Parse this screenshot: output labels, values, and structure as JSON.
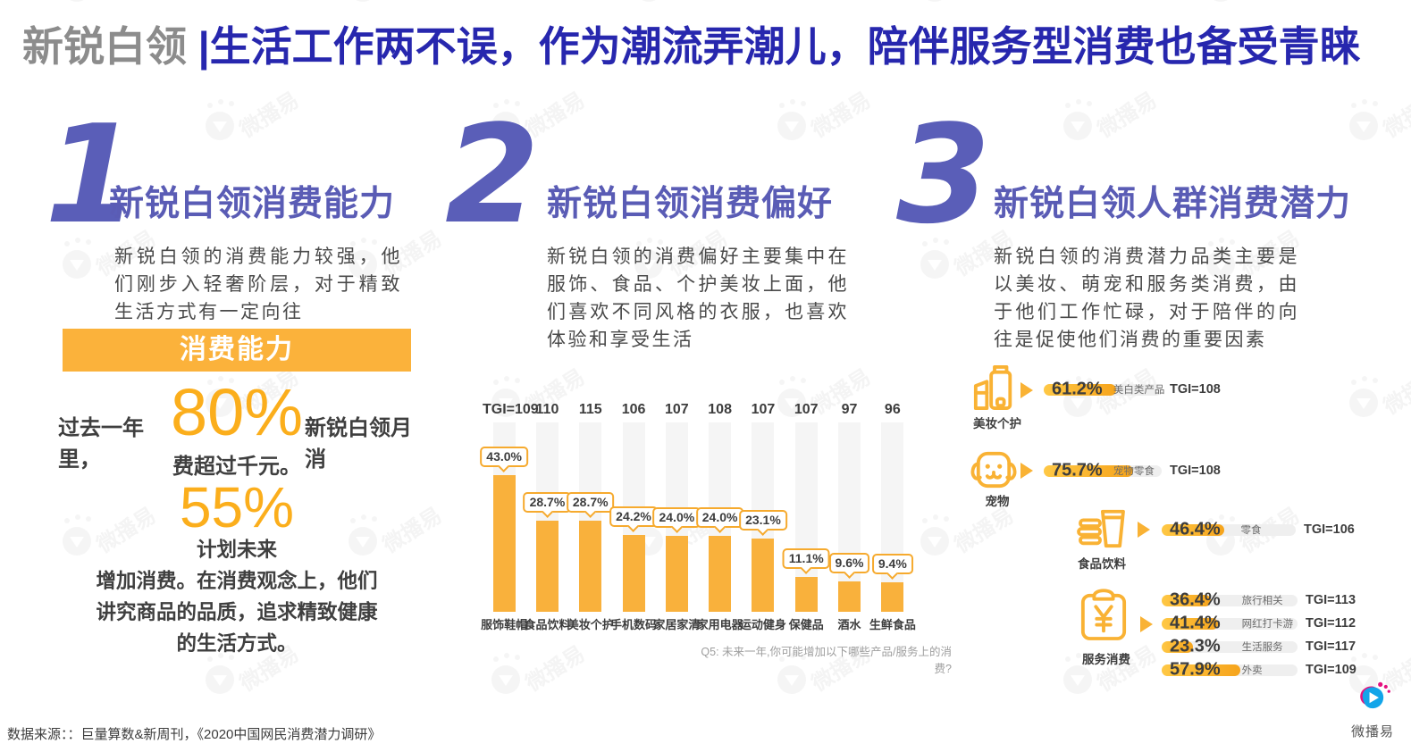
{
  "header": {
    "segment": "新锐白领",
    "divider": "|",
    "title": "生活工作两不误，作为潮流弄潮儿，陪伴服务型消费也备受青睐"
  },
  "sections": [
    {
      "number": "1",
      "heading": "新锐白领消费能力",
      "body": "新锐白领的消费能力较强，他们刚步入轻奢阶层，对于精致生活方式有一定向往"
    },
    {
      "number": "2",
      "heading": "新锐白领消费偏好",
      "body": "新锐白领的消费偏好主要集中在服饰、食品、个护美妆上面，他们喜欢不同风格的衣服，也喜欢体验和享受生活"
    },
    {
      "number": "3",
      "heading": "新锐白领人群消费潜力",
      "body": "新锐白领的消费潜力品类主要是以美妆、萌宠和服务类消费，由于他们工作忙碌，对于陪伴的向往是促使他们消费的重要因素"
    }
  ],
  "capability": {
    "banner": "消费能力",
    "stat1_prefix": "过去一年里，",
    "stat1_value": "80%",
    "stat1_suffix": "新锐白领月消",
    "stat1_line2": "费超过千元。",
    "stat2_value": "55%",
    "stat2_text": "计划未来\n增加消费。在消费观念上，他们\n讲究商品的品质，追求精致健康\n的生活方式。"
  },
  "chart_data": [
    {
      "type": "bar",
      "categories": [
        "服饰鞋帽",
        "食品饮料",
        "美妆个护",
        "手机数码",
        "家居家清",
        "家用电器",
        "运动健身",
        "保健品",
        "酒水",
        "生鲜食品"
      ],
      "values": [
        43.0,
        28.7,
        28.7,
        24.2,
        24.0,
        24.0,
        23.1,
        11.1,
        9.6,
        9.4
      ],
      "tgi": [
        109,
        110,
        115,
        106,
        107,
        108,
        107,
        107,
        97,
        96
      ],
      "unit": "%",
      "ylim": [
        0,
        45
      ],
      "grid": false,
      "note": "Q5: 未来一年,你可能增加以下哪些产品/服务上的消费?"
    },
    {
      "type": "bar",
      "orientation": "horizontal",
      "unit": "%",
      "xlim": [
        0,
        100
      ],
      "groups": [
        {
          "group": "美妆个护",
          "icon": "cosmetics-icon",
          "items": [
            {
              "label": "美白类产品",
              "value": 61.2,
              "tgi": 108
            }
          ]
        },
        {
          "group": "宠物",
          "icon": "dog-icon",
          "items": [
            {
              "label": "宠物零食",
              "value": 75.7,
              "tgi": 108
            }
          ]
        },
        {
          "group": "食品饮料",
          "icon": "food-drink-icon",
          "items": [
            {
              "label": "零食",
              "value": 46.4,
              "tgi": 106
            }
          ]
        },
        {
          "group": "服务消费",
          "icon": "service-consumption-icon",
          "items": [
            {
              "label": "旅行相关",
              "value": 36.4,
              "tgi": 113
            },
            {
              "label": "网红打卡游",
              "value": 41.4,
              "tgi": 112
            },
            {
              "label": "生活服务",
              "value": 23.3,
              "tgi": 117
            },
            {
              "label": "外卖",
              "value": 57.9,
              "tgi": 109
            }
          ]
        }
      ]
    }
  ],
  "footer": {
    "source": "数据来源：：巨量算数&新周刊，《2020中国网民消费潜力调研》",
    "logo_text": "微播易"
  },
  "watermark_text": "微播易",
  "colors": {
    "accent_orange": "#F9B234",
    "bar_orange": "#F9B13C",
    "heading_purple": "#5A5CB5",
    "title_blue": "#2727AE",
    "title_gray": "#8C8C8C",
    "text_dark": "#3F3F3F"
  }
}
